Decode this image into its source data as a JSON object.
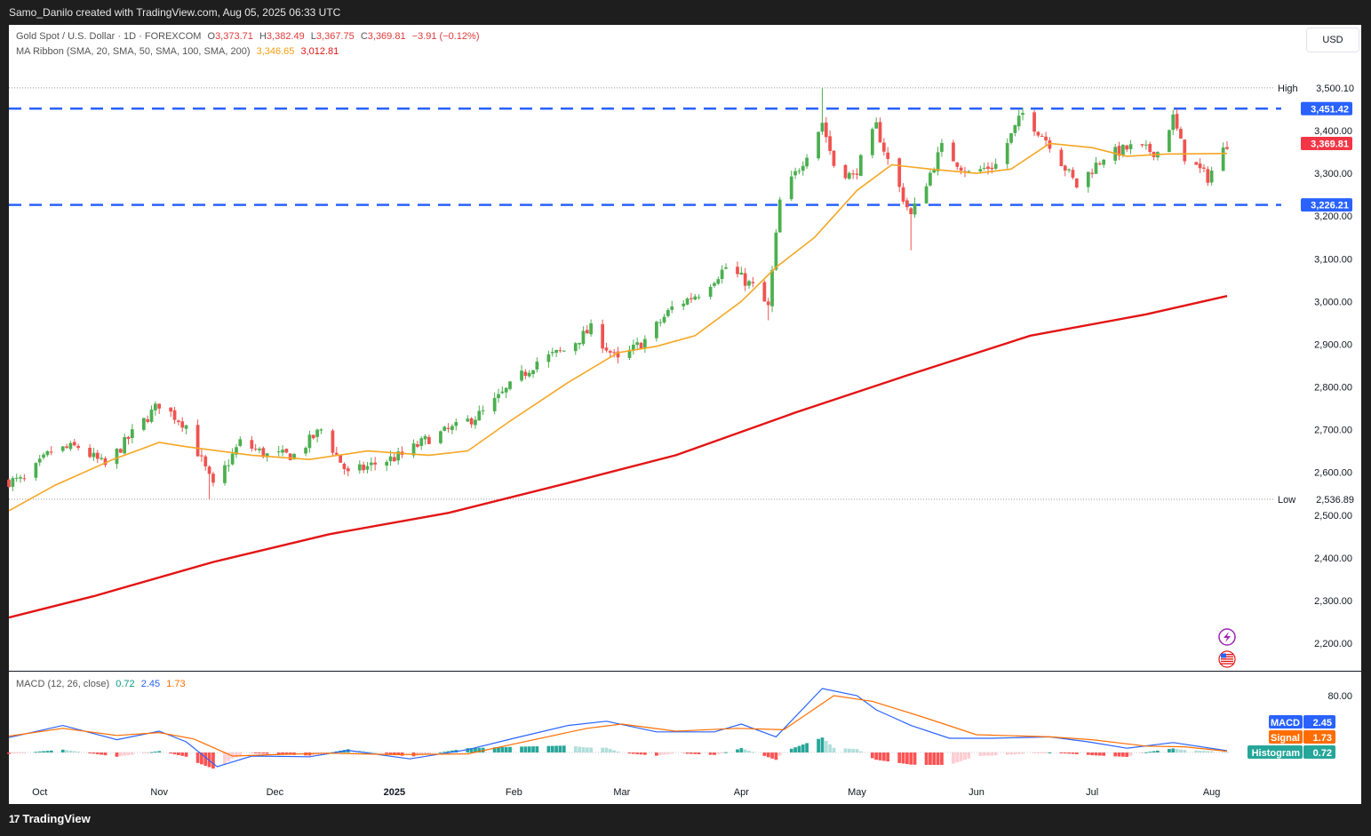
{
  "header": {
    "created_by": "Samo_Danilo created with TradingView.com, Aug 05, 2025 06:33 UTC"
  },
  "legend": {
    "symbol": "Gold Spot / U.S. Dollar · 1D · FOREXCOM",
    "open_label": "O",
    "open": "3,373.71",
    "high_label": "H",
    "high": "3,382.49",
    "low_label": "L",
    "low": "3,367.75",
    "close_label": "C",
    "close": "3,369.81",
    "change": "−3.91 (−0.12%)",
    "ma_ribbon_label": "MA Ribbon (SMA, 20, SMA, 50, SMA, 100, SMA, 200)",
    "ma_20_value": "3,346.65",
    "ma_200_value": "3,012.81",
    "macd_label": "MACD (12, 26, close)",
    "macd_hist_value": "0.72",
    "macd_value": "2.45",
    "macd_signal_value": "1.73"
  },
  "currency_button": "USD",
  "footer": {
    "brand": "TradingView",
    "logo_mark": "17"
  },
  "colors": {
    "up": "#089981",
    "down": "#f23645",
    "up_candle": "#4caf50",
    "down_candle": "#ef5350",
    "ma20": "#f5a623",
    "ma200": "#e31414",
    "level": "#2962ff",
    "macd_line": "#2962ff",
    "signal_line": "#ff6d00",
    "hist_pos_strong": "#26a69a",
    "hist_pos_weak": "#b2dfdb",
    "hist_neg_strong": "#ff5252",
    "hist_neg_weak": "#ffcdd2"
  },
  "chart_data": {
    "type": "candlestick",
    "ylim": [
      2150,
      3560
    ],
    "y_ticks": [
      "2,200.00",
      "2,300.00",
      "2,400.00",
      "2,500.00",
      "2,600.00",
      "2,700.00",
      "2,800.00",
      "2,900.00",
      "3,000.00",
      "3,100.00",
      "3,200.00",
      "3,300.00",
      "3,400.00"
    ],
    "y_tick_values": [
      2200,
      2300,
      2400,
      2500,
      2600,
      2700,
      2800,
      2900,
      3000,
      3100,
      3200,
      3300,
      3400
    ],
    "x_labels": [
      "Oct",
      "Nov",
      "Dec",
      "2025",
      "Feb",
      "Mar",
      "Apr",
      "May",
      "Jun",
      "Jul",
      "Aug"
    ],
    "x_label_dates": [
      "2024-10-01",
      "2024-11-01",
      "2024-12-01",
      "2025-01-01",
      "2025-02-01",
      "2025-03-01",
      "2025-04-01",
      "2025-05-01",
      "2025-06-01",
      "2025-07-01",
      "2025-08-01"
    ],
    "period": {
      "start": "2024-09-23",
      "end": "2025-08-05"
    },
    "high_marker": {
      "label": "High",
      "value": 3500.1,
      "text": "3,500.10"
    },
    "low_marker": {
      "label": "Low",
      "value": 2536.89,
      "text": "2,536.89"
    },
    "levels": [
      {
        "value": 3451.42,
        "text": "3,451.42"
      },
      {
        "value": 3226.21,
        "text": "3,226.21"
      }
    ],
    "last_price": {
      "value": 3369.81,
      "text": "3,369.81"
    },
    "close_path": [
      [
        "2024-09-23",
        2580
      ],
      [
        "2024-09-27",
        2580
      ],
      [
        "2024-10-04",
        2650
      ],
      [
        "2024-10-11",
        2660
      ],
      [
        "2024-10-18",
        2615
      ],
      [
        "2024-10-25",
        2690
      ],
      [
        "2024-11-01",
        2760
      ],
      [
        "2024-11-08",
        2710
      ],
      [
        "2024-11-15",
        2565
      ],
      [
        "2024-11-22",
        2670
      ],
      [
        "2024-11-29",
        2640
      ],
      [
        "2024-12-06",
        2640
      ],
      [
        "2024-12-13",
        2700
      ],
      [
        "2024-12-20",
        2595
      ],
      [
        "2024-12-27",
        2620
      ],
      [
        "2025-01-03",
        2640
      ],
      [
        "2025-01-10",
        2680
      ],
      [
        "2025-01-17",
        2705
      ],
      [
        "2025-01-24",
        2740
      ],
      [
        "2025-01-31",
        2800
      ],
      [
        "2025-02-07",
        2860
      ],
      [
        "2025-02-14",
        2885
      ],
      [
        "2025-02-21",
        2935
      ],
      [
        "2025-02-28",
        2860
      ],
      [
        "2025-03-07",
        2910
      ],
      [
        "2025-03-14",
        2985
      ],
      [
        "2025-03-21",
        3020
      ],
      [
        "2025-03-28",
        3080
      ],
      [
        "2025-04-04",
        3035
      ],
      [
        "2025-04-08",
        2985
      ],
      [
        "2025-04-11",
        3235
      ],
      [
        "2025-04-17",
        3330
      ],
      [
        "2025-04-22",
        3420
      ],
      [
        "2025-04-25",
        3320
      ],
      [
        "2025-04-30",
        3290
      ],
      [
        "2025-05-06",
        3410
      ],
      [
        "2025-05-09",
        3330
      ],
      [
        "2025-05-15",
        3200
      ],
      [
        "2025-05-23",
        3360
      ],
      [
        "2025-05-30",
        3300
      ],
      [
        "2025-06-06",
        3320
      ],
      [
        "2025-06-13",
        3440
      ],
      [
        "2025-06-20",
        3370
      ],
      [
        "2025-06-27",
        3270
      ],
      [
        "2025-07-04",
        3340
      ],
      [
        "2025-07-11",
        3360
      ],
      [
        "2025-07-18",
        3350
      ],
      [
        "2025-07-22",
        3430
      ],
      [
        "2025-07-25",
        3340
      ],
      [
        "2025-07-31",
        3290
      ],
      [
        "2025-08-05",
        3370
      ]
    ],
    "swings": [
      {
        "date": "2025-04-22",
        "high": 3500.1
      },
      {
        "date": "2024-11-14",
        "low": 2536.89
      },
      {
        "date": "2025-05-15",
        "low": 3120
      },
      {
        "date": "2025-04-08",
        "low": 2956
      }
    ],
    "ma_ribbon": [
      {
        "name": "SMA 20",
        "value": "3,346.65",
        "points": [
          [
            "2024-09-23",
            2510
          ],
          [
            "2024-10-05",
            2570
          ],
          [
            "2024-10-20",
            2630
          ],
          [
            "2024-11-01",
            2670
          ],
          [
            "2024-11-08",
            2660
          ],
          [
            "2024-11-25",
            2640
          ],
          [
            "2024-12-10",
            2630
          ],
          [
            "2024-12-25",
            2650
          ],
          [
            "2025-01-10",
            2640
          ],
          [
            "2025-01-20",
            2650
          ],
          [
            "2025-01-31",
            2720
          ],
          [
            "2025-02-15",
            2810
          ],
          [
            "2025-02-28",
            2880
          ],
          [
            "2025-03-10",
            2895
          ],
          [
            "2025-03-20",
            2920
          ],
          [
            "2025-04-01",
            3000
          ],
          [
            "2025-04-10",
            3080
          ],
          [
            "2025-04-20",
            3150
          ],
          [
            "2025-05-01",
            3260
          ],
          [
            "2025-05-10",
            3320
          ],
          [
            "2025-05-20",
            3310
          ],
          [
            "2025-06-01",
            3300
          ],
          [
            "2025-06-10",
            3310
          ],
          [
            "2025-06-20",
            3370
          ],
          [
            "2025-07-01",
            3360
          ],
          [
            "2025-07-10",
            3340
          ],
          [
            "2025-07-20",
            3345
          ],
          [
            "2025-08-05",
            3346.65
          ]
        ]
      },
      {
        "name": "SMA 200",
        "value": "3,012.81",
        "points": [
          [
            "2024-09-23",
            2260
          ],
          [
            "2024-10-15",
            2310
          ],
          [
            "2024-11-15",
            2390
          ],
          [
            "2024-12-15",
            2455
          ],
          [
            "2025-01-15",
            2505
          ],
          [
            "2025-02-15",
            2575
          ],
          [
            "2025-03-15",
            2640
          ],
          [
            "2025-04-15",
            2740
          ],
          [
            "2025-05-15",
            2830
          ],
          [
            "2025-06-15",
            2920
          ],
          [
            "2025-07-15",
            2970
          ],
          [
            "2025-08-05",
            3012.81
          ]
        ]
      }
    ],
    "macd": {
      "ticks": [
        "80.00"
      ],
      "tick_values": [
        80
      ],
      "ylim": [
        -40,
        100
      ],
      "macd_points": [
        [
          "2024-09-23",
          21
        ],
        [
          "2024-10-07",
          38
        ],
        [
          "2024-10-21",
          18
        ],
        [
          "2024-11-01",
          30
        ],
        [
          "2024-11-08",
          15
        ],
        [
          "2024-11-16",
          -20
        ],
        [
          "2024-11-25",
          -5
        ],
        [
          "2024-12-10",
          -6
        ],
        [
          "2024-12-20",
          3
        ],
        [
          "2025-01-05",
          -9
        ],
        [
          "2025-01-20",
          4
        ],
        [
          "2025-02-01",
          20
        ],
        [
          "2025-02-15",
          38
        ],
        [
          "2025-02-25",
          44
        ],
        [
          "2025-03-10",
          29
        ],
        [
          "2025-03-25",
          29
        ],
        [
          "2025-04-01",
          40
        ],
        [
          "2025-04-10",
          22
        ],
        [
          "2025-04-22",
          90
        ],
        [
          "2025-05-01",
          80
        ],
        [
          "2025-05-06",
          60
        ],
        [
          "2025-05-15",
          38
        ],
        [
          "2025-05-25",
          20
        ],
        [
          "2025-06-05",
          20
        ],
        [
          "2025-06-20",
          22
        ],
        [
          "2025-06-30",
          15
        ],
        [
          "2025-07-10",
          6
        ],
        [
          "2025-07-22",
          14
        ],
        [
          "2025-08-05",
          2.45
        ]
      ],
      "signal_points": [
        [
          "2024-09-23",
          23
        ],
        [
          "2024-10-07",
          34
        ],
        [
          "2024-10-21",
          24
        ],
        [
          "2024-11-01",
          28
        ],
        [
          "2024-11-10",
          19
        ],
        [
          "2024-11-20",
          -5
        ],
        [
          "2024-12-01",
          -3
        ],
        [
          "2024-12-15",
          -1
        ],
        [
          "2025-01-01",
          -3
        ],
        [
          "2025-01-20",
          -2
        ],
        [
          "2025-02-01",
          12
        ],
        [
          "2025-02-20",
          34
        ],
        [
          "2025-03-01",
          40
        ],
        [
          "2025-03-15",
          30
        ],
        [
          "2025-03-31",
          34
        ],
        [
          "2025-04-12",
          32
        ],
        [
          "2025-04-25",
          80
        ],
        [
          "2025-05-05",
          72
        ],
        [
          "2025-05-18",
          50
        ],
        [
          "2025-06-01",
          25
        ],
        [
          "2025-06-20",
          22
        ],
        [
          "2025-07-01",
          18
        ],
        [
          "2025-07-15",
          9
        ],
        [
          "2025-07-25",
          8
        ],
        [
          "2025-08-05",
          1.73
        ]
      ]
    }
  },
  "price_tags": {
    "high_label": "High",
    "high_text": "3,500.10",
    "low_label": "Low",
    "low_text": "2,536.89",
    "level_upper": "3,451.42",
    "level_lower": "3,226.21",
    "last_price": "3,369.81",
    "macd_tags": [
      {
        "label": "MACD",
        "value": "2.45"
      },
      {
        "label": "Signal",
        "value": "1.73"
      },
      {
        "label": "Histogram",
        "value": "0.72"
      }
    ]
  },
  "side_icons": [
    "lightning-icon",
    "us-flag-icon"
  ]
}
